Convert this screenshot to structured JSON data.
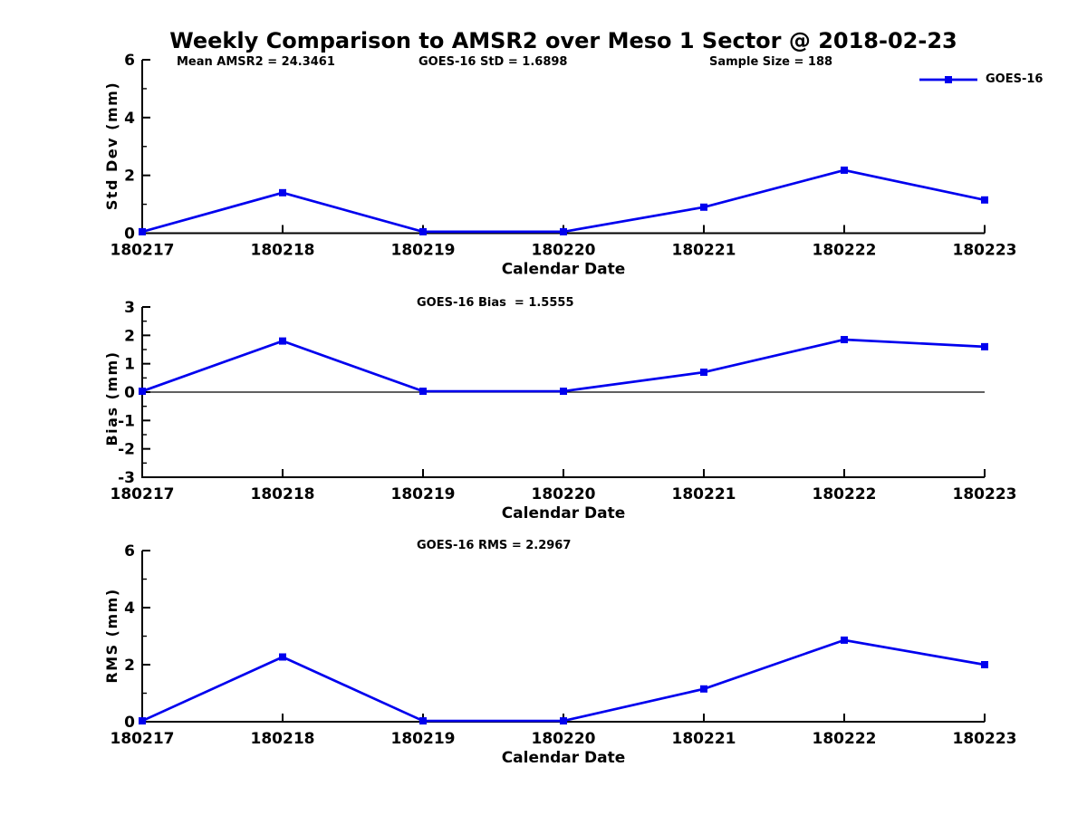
{
  "figure": {
    "title": "Weekly Comparison to AMSR2 over Meso 1 Sector @ 2018-02-23",
    "legend": {
      "label": "GOES-16",
      "position": "top-right",
      "marker": "square"
    },
    "colors": {
      "line": "#0000EE",
      "axis": "#000000",
      "text": "#000000"
    }
  },
  "chart_data": [
    {
      "type": "line",
      "title": "",
      "categories": [
        "180217",
        "180218",
        "180219",
        "180220",
        "180221",
        "180222",
        "180223"
      ],
      "series": [
        {
          "name": "GOES-16",
          "marker": "square",
          "values": [
            0.05,
            1.4,
            0.05,
            0.05,
            0.9,
            2.18,
            1.15
          ]
        }
      ],
      "annotations": [
        "Mean AMSR2 = 24.3461",
        "GOES-16 StD = 1.6898",
        "Sample Size = 188"
      ],
      "xlabel": "Calendar Date",
      "ylabel": "Std Dev (mm)",
      "ylim": [
        0,
        6
      ],
      "yticks": [
        0,
        2,
        4,
        6
      ],
      "yticks_minor": [
        1,
        3,
        5
      ],
      "zero_line": false,
      "grid": false
    },
    {
      "type": "line",
      "title": "",
      "categories": [
        "180217",
        "180218",
        "180219",
        "180220",
        "180221",
        "180222",
        "180223"
      ],
      "series": [
        {
          "name": "GOES-16",
          "marker": "square",
          "values": [
            0.03,
            1.8,
            0.03,
            0.03,
            0.7,
            1.85,
            1.6
          ]
        }
      ],
      "annotations": [
        "GOES-16 Bias  = 1.5555"
      ],
      "xlabel": "Calendar Date",
      "ylabel": "Bias (mm)",
      "ylim": [
        -3,
        3
      ],
      "yticks": [
        -3,
        -2,
        -1,
        0,
        1,
        2,
        3
      ],
      "yticks_minor": [
        -2.5,
        -1.5,
        -0.5,
        0.5,
        1.5,
        2.5
      ],
      "zero_line": true,
      "grid": false
    },
    {
      "type": "line",
      "title": "",
      "categories": [
        "180217",
        "180218",
        "180219",
        "180220",
        "180221",
        "180222",
        "180223"
      ],
      "series": [
        {
          "name": "GOES-16",
          "marker": "square",
          "values": [
            0.03,
            2.27,
            0.03,
            0.03,
            1.15,
            2.86,
            2.0
          ]
        }
      ],
      "annotations": [
        "GOES-16 RMS = 2.2967"
      ],
      "xlabel": "Calendar Date",
      "ylabel": "RMS (mm)",
      "ylim": [
        0,
        6
      ],
      "yticks": [
        0,
        2,
        4,
        6
      ],
      "yticks_minor": [
        1,
        3,
        5
      ],
      "zero_line": false,
      "grid": false
    }
  ]
}
